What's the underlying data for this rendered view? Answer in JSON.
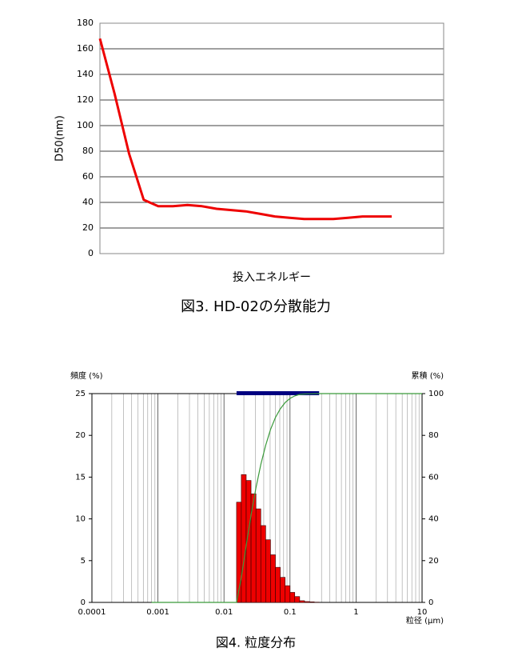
{
  "chart_data": [
    {
      "type": "line",
      "y_label": "D50(nm)",
      "x_label": "投入エネルギー",
      "caption": "図3. HD-02の分散能力",
      "categories": [
        null,
        null,
        null,
        null,
        null,
        null,
        null,
        null,
        null,
        null,
        null,
        null,
        null,
        null,
        null,
        null,
        null,
        null,
        null,
        null,
        null
      ],
      "values": [
        168,
        125,
        78,
        42,
        37,
        37,
        38,
        37,
        35,
        34,
        33,
        31,
        29,
        28,
        27,
        27,
        27,
        28,
        29,
        29,
        29
      ],
      "color": "#ee0000",
      "ylim": [
        0,
        180
      ],
      "yticks": [
        0,
        20,
        40,
        60,
        80,
        100,
        120,
        140,
        160,
        180
      ],
      "grid": true
    },
    {
      "type": "histogram",
      "y_label": "頻度 (%)",
      "y2_label": "累積 (%)",
      "x_label": "粒径 (μm)",
      "caption": "図4. 粒度分布",
      "log_x": true,
      "xlim": [
        0.0001,
        10
      ],
      "xticks": [
        0.0001,
        0.001,
        0.01,
        0.1,
        1,
        10
      ],
      "ylim": [
        0,
        25
      ],
      "yticks": [
        0,
        5,
        10,
        15,
        20,
        25
      ],
      "y2lim": [
        0,
        100
      ],
      "y2ticks": [
        0,
        20,
        40,
        60,
        80,
        100
      ],
      "bins": [
        0.0155,
        0.0183,
        0.0217,
        0.0257,
        0.0305,
        0.0361,
        0.0428,
        0.0507,
        0.0601,
        0.0712,
        0.0844,
        0.1,
        0.118,
        0.14,
        0.166,
        0.197,
        0.233,
        0.276
      ],
      "values": [
        12,
        15.3,
        14.6,
        13,
        11.2,
        9.2,
        7.5,
        5.7,
        4.2,
        3.0,
        2.0,
        1.2,
        0.7,
        0.2,
        0.1,
        0.07,
        0.03
      ],
      "color": "#ee0000",
      "series": [
        {
          "color": "#3a9a3a",
          "axis": "y2",
          "x": [
            0.0008,
            0.0155,
            0.0183,
            0.0217,
            0.0257,
            0.0305,
            0.0361,
            0.0428,
            0.0507,
            0.0601,
            0.0712,
            0.0844,
            0.1,
            0.118,
            0.14,
            0.166,
            0.197,
            0.233,
            0.276,
            10
          ],
          "values": [
            0,
            0,
            12,
            27.3,
            41.9,
            54.9,
            66.1,
            75.3,
            82.8,
            88.5,
            92.7,
            95.7,
            97.7,
            98.9,
            99.6,
            99.8,
            99.9,
            99.97,
            100,
            100
          ]
        }
      ],
      "range": [
        0.0155,
        0.276
      ],
      "range_color": "#000080",
      "grid": true
    }
  ]
}
